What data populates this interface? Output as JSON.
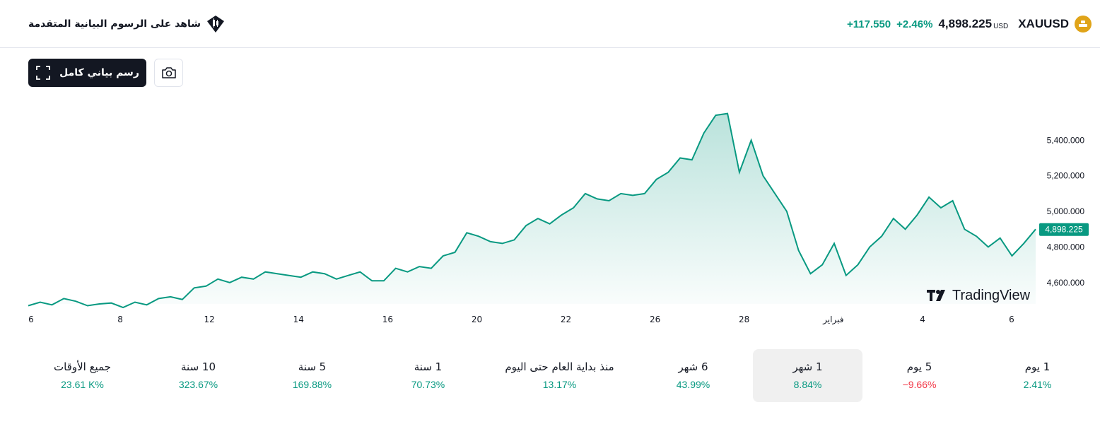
{
  "header": {
    "symbol": "XAUUSD",
    "price": "4,898.225",
    "currency": "USD",
    "change_pct": "+2.46%",
    "change_abs": "+117.550",
    "advanced_link": "شاهد على الرسوم البيانية المتقدمة"
  },
  "toolbar": {
    "full_chart_label": "رسم بياني كامل"
  },
  "colors": {
    "accent_green": "#089981",
    "negative_red": "#f23645",
    "gold": "#e0a419",
    "dark": "#131722"
  },
  "icons": [
    "gold-coin-icon",
    "candlestick-icon",
    "fullscreen-icon",
    "camera-icon",
    "tradingview-logo-icon"
  ],
  "chart_data": {
    "type": "area",
    "ylim": [
      4480,
      5600
    ],
    "y_ticks": [
      "5,400.000",
      "5,200.000",
      "5,000.000",
      "4,800.000",
      "4,600.000"
    ],
    "y_tick_values": [
      5400,
      5200,
      5000,
      4800,
      4600
    ],
    "x_ticks": [
      "6",
      "8",
      "12",
      "14",
      "16",
      "20",
      "22",
      "26",
      "28",
      "فبراير",
      "4",
      "6"
    ],
    "x_tick_index": [
      0,
      2,
      4,
      6,
      8,
      10,
      12,
      14,
      16,
      18,
      20,
      22
    ],
    "last_price_label": "4,898.225",
    "last_price": 4898.225,
    "watermark": "TradingView",
    "series": [
      {
        "values": [
          4470,
          4490,
          4475,
          4510,
          4495,
          4470,
          4480,
          4485,
          4460,
          4490,
          4475,
          4510,
          4520,
          4505,
          4570,
          4580,
          4620,
          4600,
          4630,
          4620,
          4660,
          4650,
          4640,
          4630,
          4660,
          4650,
          4620,
          4640,
          4660,
          4610,
          4610,
          4680,
          4660,
          4690,
          4680,
          4750,
          4770,
          4880,
          4860,
          4830,
          4820,
          4840,
          4920,
          4960,
          4930,
          4980,
          5020,
          5100,
          5070,
          5060,
          5100,
          5090,
          5100,
          5180,
          5220,
          5300,
          5290,
          5440,
          5540,
          5550,
          5220,
          5400,
          5200,
          5100,
          5000,
          4780,
          4650,
          4700,
          4820,
          4640,
          4700,
          4800,
          4860,
          4960,
          4900,
          4980,
          5080,
          5020,
          5060,
          4900,
          4860,
          4800,
          4850,
          4750,
          4820,
          4900
        ]
      }
    ]
  },
  "periods": [
    {
      "label": "1 يوم",
      "value": "2.41%",
      "negative": false,
      "active": false
    },
    {
      "label": "5 يوم",
      "value": "−9.66%",
      "negative": true,
      "active": false
    },
    {
      "label": "1 شهر",
      "value": "8.84%",
      "negative": false,
      "active": true
    },
    {
      "label": "6 شهر",
      "value": "43.99%",
      "negative": false,
      "active": false
    },
    {
      "label": "منذ بداية العام حتى اليوم",
      "value": "13.17%",
      "negative": false,
      "active": false
    },
    {
      "label": "1 سنة",
      "value": "70.73%",
      "negative": false,
      "active": false
    },
    {
      "label": "5 سنة",
      "value": "169.88%",
      "negative": false,
      "active": false
    },
    {
      "label": "10 سنة",
      "value": "323.67%",
      "negative": false,
      "active": false
    },
    {
      "label": "جميع الأوقات",
      "value": "23.61 K%",
      "negative": false,
      "active": false
    }
  ]
}
